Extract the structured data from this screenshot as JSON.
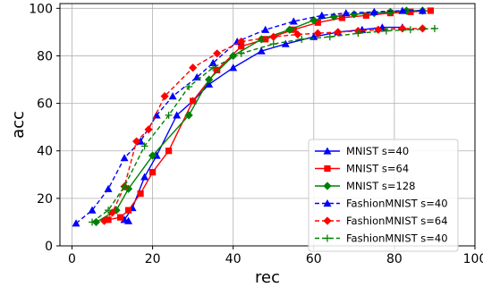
{
  "chart_data": {
    "type": "line",
    "xlabel": "rec",
    "ylabel": "acc",
    "xlim": [
      -3,
      100
    ],
    "ylim": [
      0,
      102
    ],
    "xticks": [
      0,
      20,
      40,
      60,
      80,
      100
    ],
    "yticks": [
      0,
      20,
      40,
      60,
      80,
      100
    ],
    "grid": true,
    "legend_position": "lower-right",
    "series": [
      {
        "name": "MNIST s=40",
        "color": "#0000ff",
        "dash": "solid",
        "marker": "triangle",
        "x": [
          14,
          13,
          15,
          18,
          21,
          26,
          30,
          34,
          40,
          47,
          53,
          60,
          66,
          72,
          77,
          82
        ],
        "y": [
          10.5,
          11,
          16,
          29,
          38,
          55,
          61,
          68,
          75,
          82,
          85,
          88,
          90,
          91,
          92,
          92
        ]
      },
      {
        "name": "MNIST s=64",
        "color": "#ff0000",
        "dash": "solid",
        "marker": "square",
        "x": [
          9,
          12,
          14,
          17,
          20,
          24,
          30,
          36,
          42,
          48,
          55,
          61,
          67,
          73,
          79,
          84,
          89
        ],
        "y": [
          11,
          12,
          15,
          22,
          31,
          40,
          61,
          74,
          84,
          87,
          91,
          94,
          96,
          97,
          98,
          98.5,
          99
        ]
      },
      {
        "name": "MNIST s=128",
        "color": "#008000",
        "dash": "solid",
        "marker": "diamond",
        "x": [
          6,
          11,
          14,
          20,
          29,
          34,
          40,
          47,
          54,
          60,
          65,
          70,
          75,
          79,
          83,
          87
        ],
        "y": [
          10,
          15,
          24,
          38,
          55,
          70,
          80,
          87,
          91,
          95,
          96.5,
          97.5,
          98,
          98.5,
          99,
          99
        ]
      },
      {
        "name": "FashionMNIST s=40",
        "color": "#0000ff",
        "dash": "dashed",
        "marker": "triangle",
        "x": [
          1,
          5,
          9,
          13,
          17,
          21,
          25,
          31,
          35,
          41,
          48,
          55,
          62,
          68,
          75,
          82,
          87
        ],
        "y": [
          9.5,
          15,
          24,
          37,
          44,
          55,
          63,
          71,
          77,
          86,
          91,
          94.5,
          97,
          98,
          98.5,
          99,
          99
        ]
      },
      {
        "name": "FashionMNIST s=64",
        "color": "#ff0000",
        "dash": "dashed",
        "marker": "diamond",
        "x": [
          8,
          10,
          13,
          16,
          19,
          23,
          30,
          36,
          42,
          50,
          56,
          61,
          66,
          71,
          76,
          82,
          87
        ],
        "y": [
          10.5,
          14,
          25,
          44,
          49,
          63,
          75,
          81,
          86,
          88,
          89,
          89.5,
          90,
          90.5,
          91,
          91.5,
          91.5
        ]
      },
      {
        "name": "FashionMNIST s=40",
        "color": "#008000",
        "dash": "dashed",
        "marker": "plus",
        "x": [
          5,
          9,
          13,
          18,
          24,
          29,
          35,
          42,
          50,
          57,
          64,
          71,
          78,
          84,
          90
        ],
        "y": [
          10,
          15,
          25,
          42,
          55,
          67,
          75,
          81,
          85,
          87,
          88,
          89.5,
          90.5,
          91,
          91.5
        ]
      }
    ]
  }
}
